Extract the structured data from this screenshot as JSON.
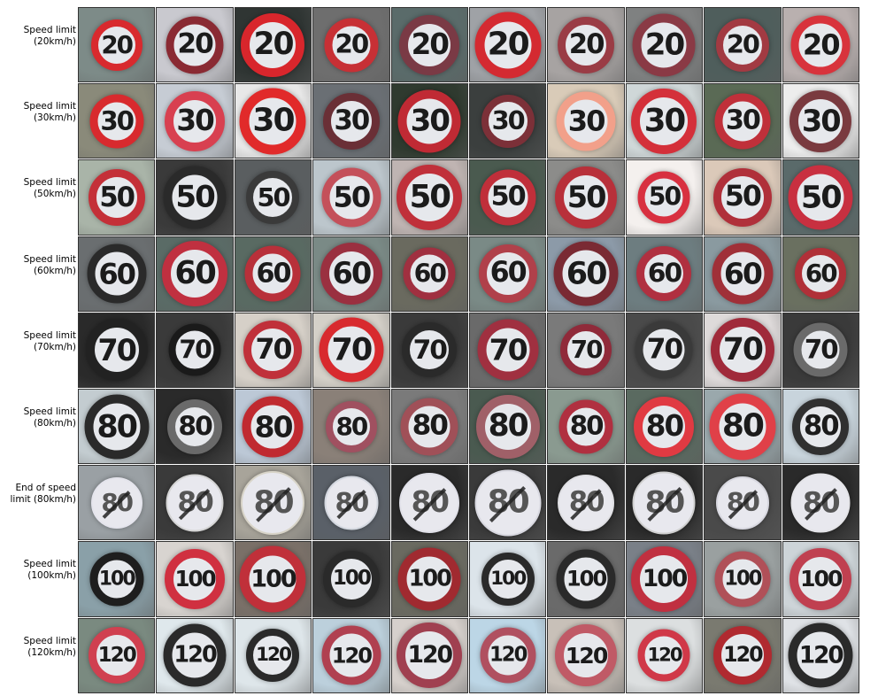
{
  "rows": [
    {
      "label": "Speed limit\n(20km/h)",
      "number": "20",
      "ring": "#d82a2e",
      "crossed": false,
      "bg": [
        "#7d8b88",
        "#c9c9cf",
        "#2f3533",
        "#6e6e6e",
        "#5a6b6a",
        "#9fa2a6",
        "#a7a3a2",
        "#7f8181",
        "#4f5e5c",
        "#b9b0af"
      ],
      "ringColors": [
        "#d82a2e",
        "#8a2a33",
        "#d8262c",
        "#c73035",
        "#7a3a45",
        "#d42a31",
        "#9a3c45",
        "#8a3a45",
        "#a23a42",
        "#d8333c"
      ]
    },
    {
      "label": "Speed limit\n(30km/h)",
      "number": "30",
      "ring": "#d82a2e",
      "crossed": false,
      "bg": [
        "#8a8a7a",
        "#c6ccd4",
        "#e8e8e8",
        "#6a6f74",
        "#2f3a2f",
        "#3b3f3e",
        "#d9cbb8",
        "#cfd7d8",
        "#5a6a55",
        "#ededed"
      ],
      "ringColors": [
        "#d82a2e",
        "#d84050",
        "#e12a2a",
        "#6a2f36",
        "#c02a34",
        "#7c3038",
        "#f2a08a",
        "#d4303a",
        "#c0303a",
        "#7a3a3f"
      ]
    },
    {
      "label": "Speed limit\n(50km/h)",
      "number": "50",
      "ring": "#d82a2e",
      "crossed": false,
      "bg": [
        "#a9b4a8",
        "#3a3a3a",
        "#5a5e60",
        "#bcc6cc",
        "#bfb4b2",
        "#4a5a4f",
        "#8c8c8a",
        "#f4f0ee",
        "#dbc9b9",
        "#5a6a6a"
      ],
      "ringColors": [
        "#c43038",
        "#2a2a2a",
        "#3a3a3a",
        "#c4505a",
        "#c0303a",
        "#c02f3a",
        "#b8303a",
        "#d83040",
        "#b0303a",
        "#c83040"
      ]
    },
    {
      "label": "Speed limit\n(60km/h)",
      "number": "60",
      "ring": "#d82a2e",
      "crossed": false,
      "bg": [
        "#6a6e70",
        "#5a6b66",
        "#596a62",
        "#7a8a86",
        "#6a6a5f",
        "#7a8a86",
        "#8c9aa8",
        "#6d7d80",
        "#8a9aa0",
        "#6a7060"
      ],
      "ringColors": [
        "#2a2a2a",
        "#c03040",
        "#b8303a",
        "#9a3040",
        "#a03040",
        "#b0404a",
        "#7a2a33",
        "#b03040",
        "#a03038",
        "#b03038"
      ]
    },
    {
      "label": "Speed limit\n(70km/h)",
      "number": "70",
      "ring": "#d82a2e",
      "crossed": false,
      "bg": [
        "#2a2a2a",
        "#3a3a3a",
        "#d6d0c8",
        "#d4d0c8",
        "#3a3a3a",
        "#6a6a6a",
        "#7a7a7a",
        "#4a4a4a",
        "#dedada",
        "#3a3a3a"
      ],
      "ringColors": [
        "#222222",
        "#1a1a1a",
        "#c0303a",
        "#d82a2e",
        "#2a2a2a",
        "#a03040",
        "#902a3a",
        "#3a3a3a",
        "#a02a3a",
        "#6a6a6a"
      ]
    },
    {
      "label": "Speed limit\n(80km/h)",
      "number": "80",
      "ring": "#d82a2e",
      "crossed": false,
      "bg": [
        "#c3ccd0",
        "#2a2a2a",
        "#bcc8d6",
        "#8a8078",
        "#7a7a7a",
        "#4a5a50",
        "#8a9a90",
        "#5a6a60",
        "#9aa8ac",
        "#c8d4dc"
      ],
      "ringColors": [
        "#2a2a2a",
        "#6a6a6a",
        "#c02a30",
        "#a05060",
        "#a05058",
        "#a06068",
        "#b03040",
        "#e03a42",
        "#e04048",
        "#303030"
      ]
    },
    {
      "label": "End of speed\nlimit (80km/h)",
      "number": "80",
      "ring": "#ededed",
      "crossed": true,
      "bg": [
        "#9aa0a4",
        "#3a3a3a",
        "#a8a49a",
        "#5a6068",
        "#2a2a2a",
        "#3a3a3a",
        "#2a2a2a",
        "#2a2a2a",
        "#4a4a4a",
        "#2a2a2a"
      ],
      "ringColors": [
        "#e4e4ec",
        "#d4d4d4",
        "#d8d4c8",
        "#d4d8e0",
        "#e0e0e8",
        "#d8d8e0",
        "#e0e0e4",
        "#cfcfcf",
        "#d8d8e0",
        "#e4e4e8"
      ]
    },
    {
      "label": "Speed limit\n(100km/h)",
      "number": "100",
      "ring": "#d82a2e",
      "crossed": false,
      "bg": [
        "#8aa0a8",
        "#d8d4d0",
        "#7a7068",
        "#3a3a3a",
        "#6a6a60",
        "#dce4ea",
        "#6a6a6a",
        "#7a8088",
        "#9aa0a0",
        "#cdd4d8"
      ],
      "ringColors": [
        "#1e1e1e",
        "#d03040",
        "#c0303a",
        "#2a2a2a",
        "#a02a30",
        "#2a2a2a",
        "#2a2a2a",
        "#c03040",
        "#b05058",
        "#c04050"
      ]
    },
    {
      "label": "Speed limit\n(120km/h)",
      "number": "120",
      "ring": "#d82a2e",
      "crossed": false,
      "bg": [
        "#7a8a80",
        "#dfe8ec",
        "#dee6ea",
        "#bcd0dc",
        "#d6d0cc",
        "#bcd6e6",
        "#c8c0b8",
        "#dcdfe0",
        "#7a7a70",
        "#dfe2e6"
      ],
      "ringColors": [
        "#d04050",
        "#2a2a2a",
        "#2a2a2a",
        "#b04050",
        "#a04050",
        "#b05060",
        "#c05a66",
        "#d03848",
        "#b02a30",
        "#2a2a2a"
      ]
    }
  ]
}
